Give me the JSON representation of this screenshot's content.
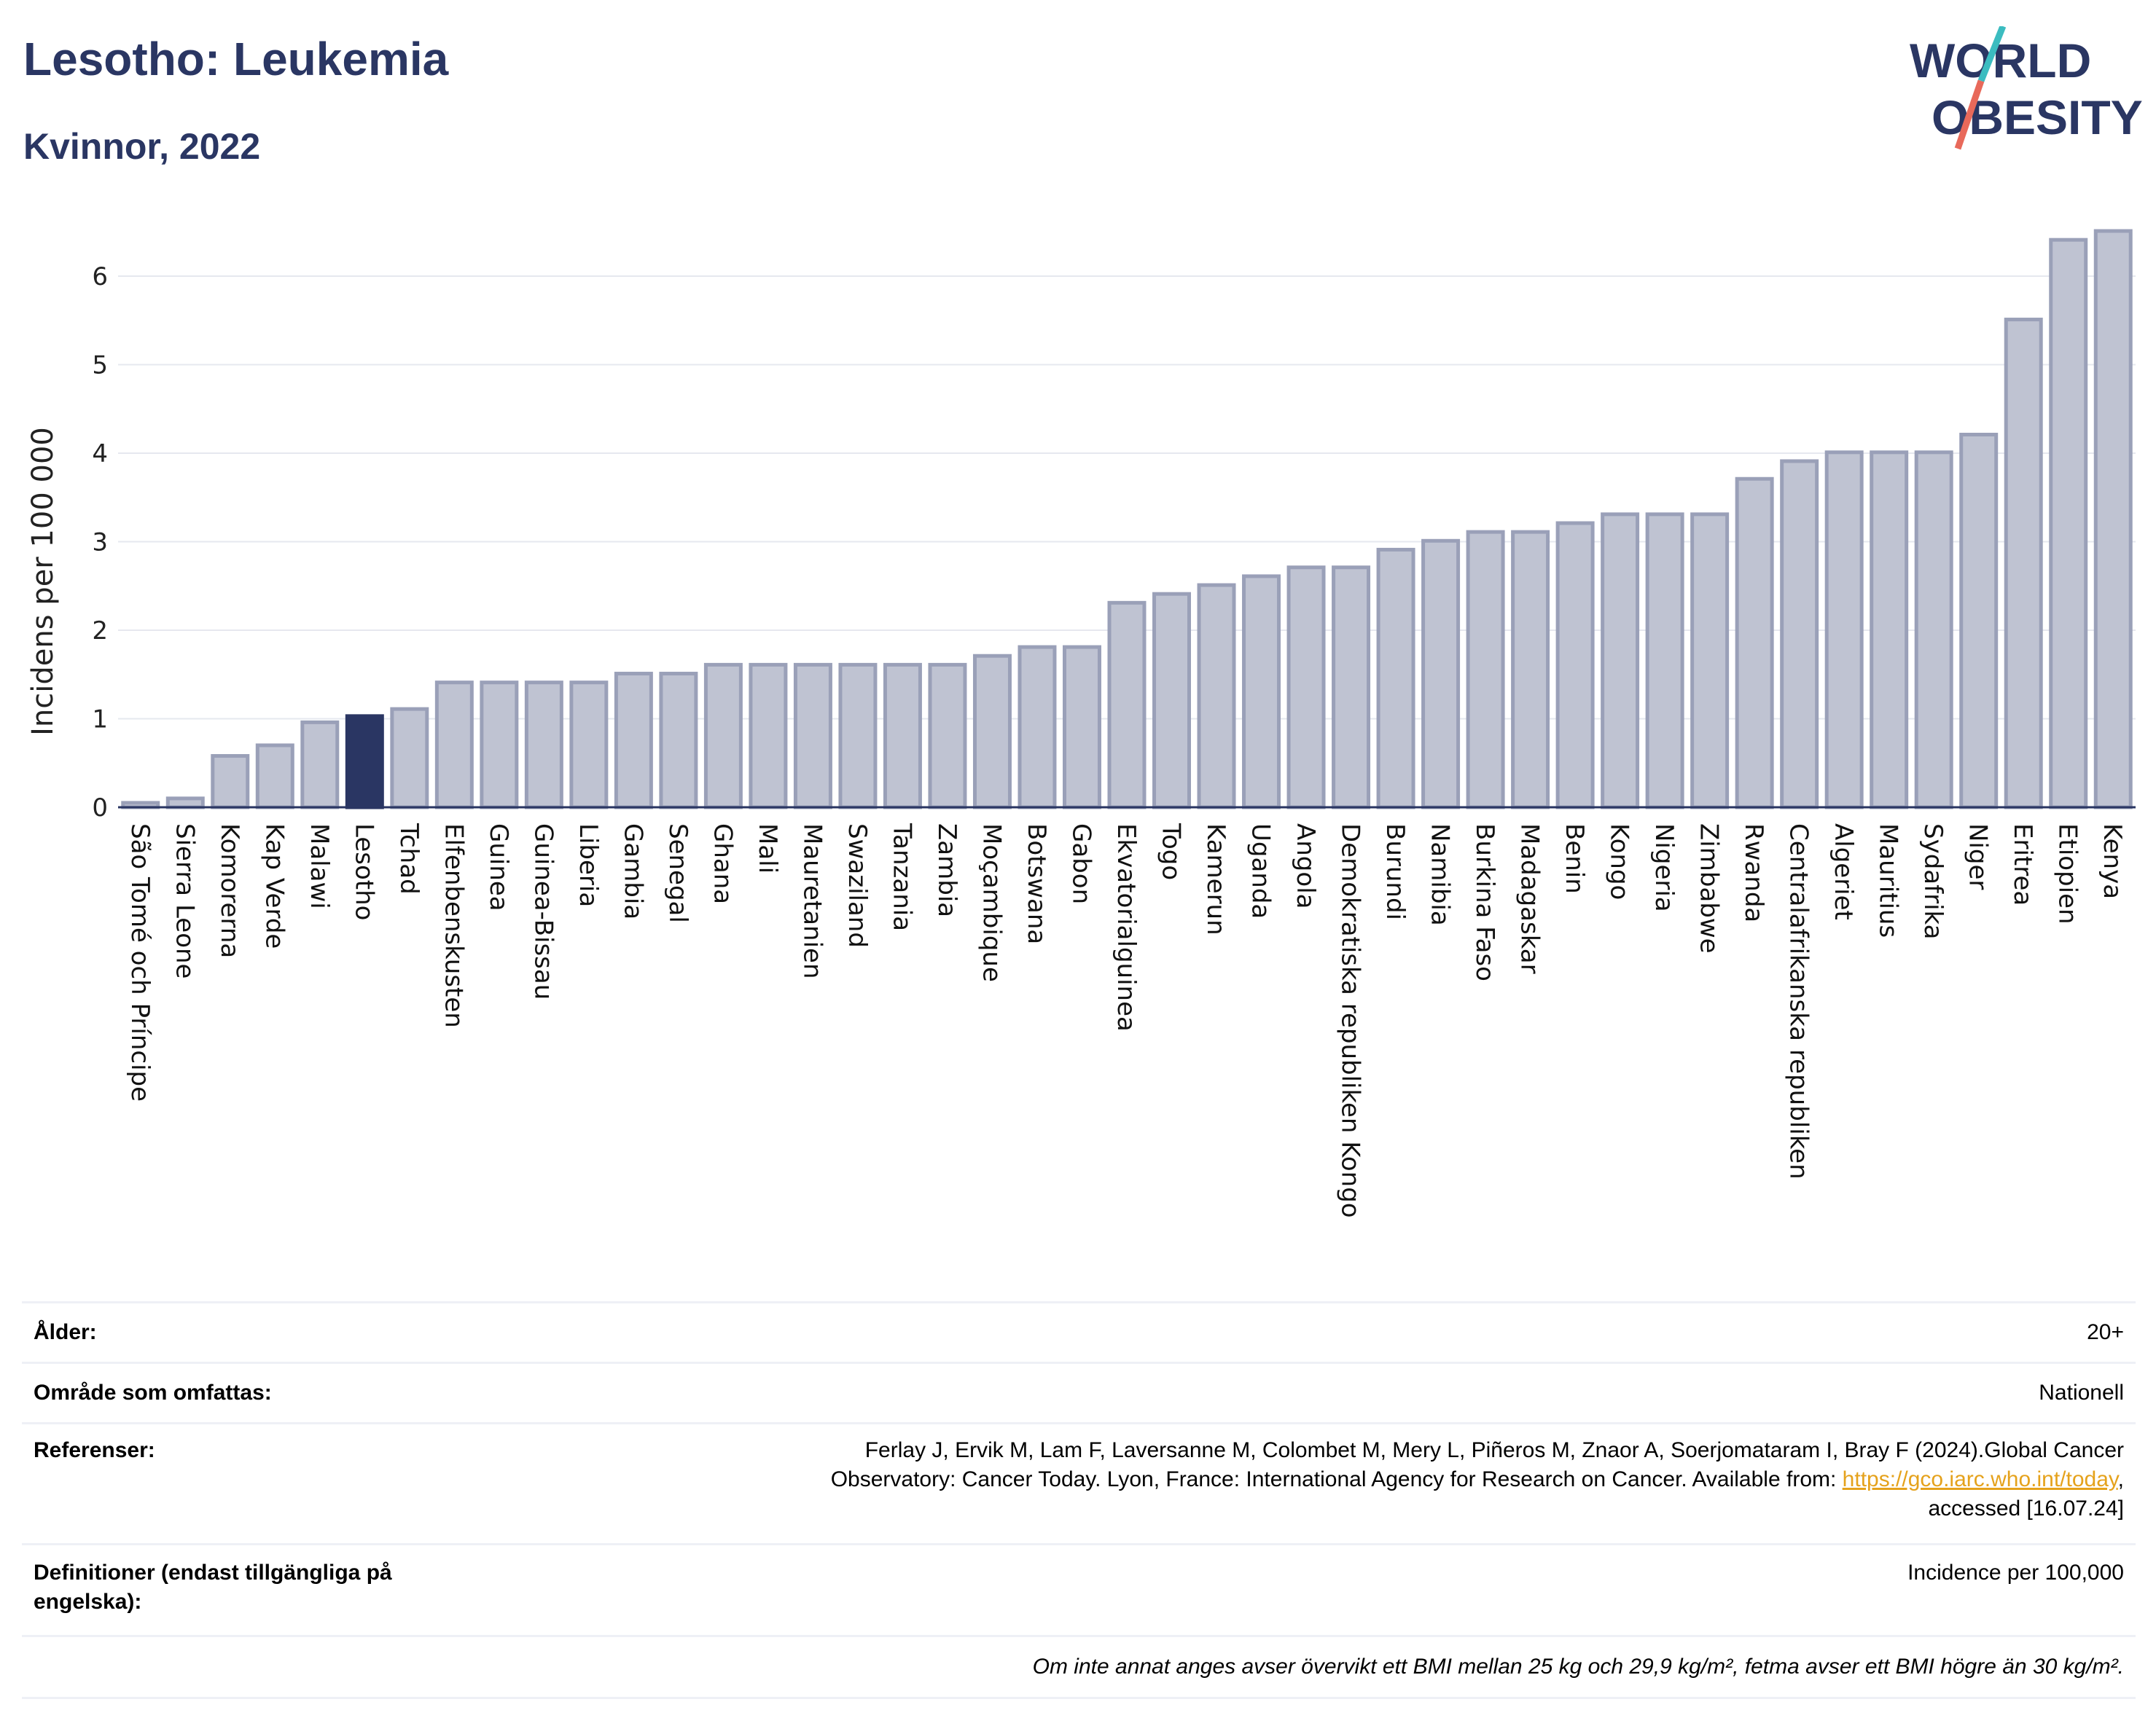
{
  "header": {
    "title": "Lesotho: Leukemia",
    "subtitle": "Kvinnor, 2022",
    "logo_line1": "WORLD",
    "logo_line2": "OBESITY"
  },
  "colors": {
    "bar": "#bfc3d2",
    "bar_stroke": "#9aa0b8",
    "highlight": "#2a3663",
    "title": "#2a3663",
    "logo_teal": "#3bbcc0",
    "logo_coral": "#e8695a",
    "link": "#e5a21c"
  },
  "chart_data": {
    "type": "bar",
    "ylabel": "Incidens per 100 000",
    "ylim": [
      0,
      6.5
    ],
    "yticks": [
      0,
      1,
      2,
      3,
      4,
      5,
      6
    ],
    "grid": true,
    "highlight_category": "Lesotho",
    "categories": [
      "São Tomé och Príncipe",
      "Sierra Leone",
      "Komorerna",
      "Kap Verde",
      "Malawi",
      "Lesotho",
      "Tchad",
      "Elfenbenskusten",
      "Guinea",
      "Guinea-Bissau",
      "Liberia",
      "Gambia",
      "Senegal",
      "Ghana",
      "Mali",
      "Mauretanien",
      "Swaziland",
      "Tanzania",
      "Zambia",
      "Moçambique",
      "Botswana",
      "Gabon",
      "Ekvatorialguinea",
      "Togo",
      "Kamerun",
      "Uganda",
      "Angola",
      "Demokratiska republiken Kongo",
      "Burundi",
      "Namibia",
      "Burkina Faso",
      "Madagaskar",
      "Benin",
      "Kongo",
      "Nigeria",
      "Zimbabwe",
      "Rwanda",
      "Centralafrikanska republiken",
      "Algeriet",
      "Mauritius",
      "Sydafrika",
      "Niger",
      "Eritrea",
      "Etiopien",
      "Kenya"
    ],
    "values": [
      0.05,
      0.1,
      0.58,
      0.7,
      0.96,
      1.03,
      1.11,
      1.41,
      1.41,
      1.41,
      1.41,
      1.51,
      1.51,
      1.61,
      1.61,
      1.61,
      1.61,
      1.61,
      1.61,
      1.71,
      1.81,
      1.81,
      2.31,
      2.41,
      2.51,
      2.61,
      2.71,
      2.71,
      2.91,
      3.01,
      3.11,
      3.11,
      3.21,
      3.31,
      3.31,
      3.31,
      3.71,
      3.91,
      4.01,
      4.01,
      4.01,
      4.21,
      5.51,
      6.41,
      6.51
    ]
  },
  "meta": {
    "age_label": "Ålder:",
    "age_value": "20+",
    "area_label": "Område som omfattas:",
    "area_value": "Nationell",
    "ref_label": "Referenser:",
    "ref_line1": "Ferlay J, Ervik M, Lam F, Laversanne M, Colombet M, Mery L, Piñeros M, Znaor A, Soerjomataram I, Bray F (2024).Global Cancer",
    "ref_line2": "Observatory: Cancer Today. Lyon, France: International Agency for Research on Cancer. Available from: ",
    "ref_link": "https://gco.iarc.who.int/today",
    "ref_line2_end": ",",
    "ref_line3": "accessed [16.07.24]",
    "def_label": "Definitioner (endast tillgängliga på engelska):",
    "def_value": "Incidence per 100,000",
    "footnote": "Om inte annat anges avser övervikt ett BMI mellan 25 kg och 29,9 kg/m², fetma avser ett BMI högre än 30 kg/m²."
  }
}
